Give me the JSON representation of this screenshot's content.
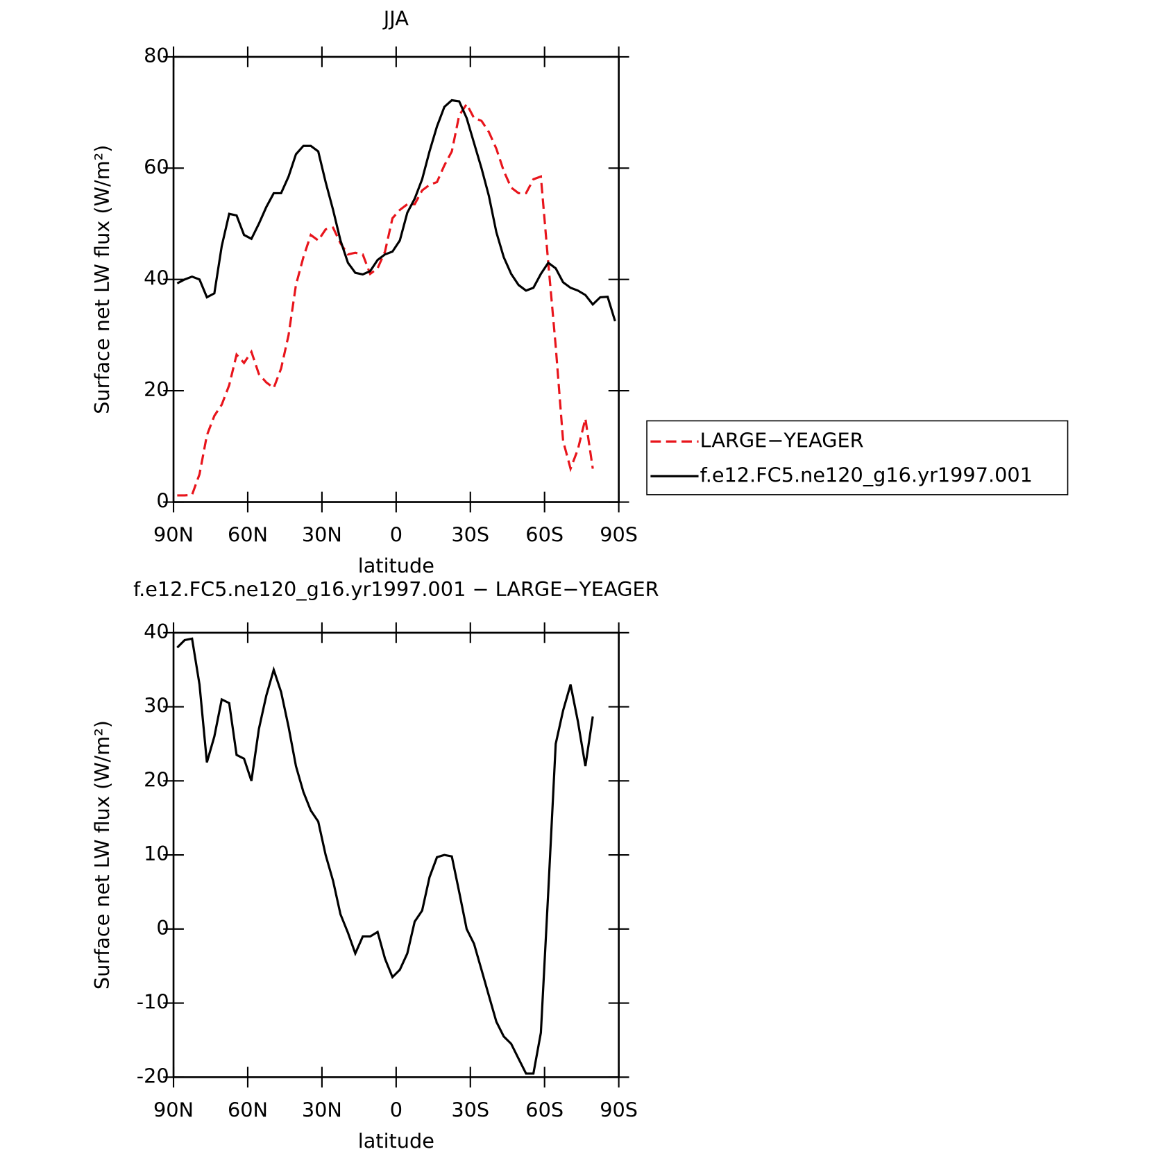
{
  "chart_data": [
    {
      "type": "line",
      "title": "JJA",
      "xlabel": "latitude",
      "ylabel": "Surface net LW flux (W/m²)",
      "x": [
        88.5,
        85.5,
        82.5,
        79.5,
        76.5,
        73.5,
        70.5,
        67.5,
        64.5,
        61.5,
        58.5,
        55.5,
        52.5,
        49.5,
        46.5,
        43.5,
        40.5,
        37.5,
        34.5,
        31.5,
        28.5,
        25.5,
        22.5,
        19.5,
        16.5,
        13.5,
        10.5,
        7.5,
        4.5,
        1.5,
        -1.5,
        -4.5,
        -7.5,
        -10.5,
        -13.5,
        -16.5,
        -19.5,
        -22.5,
        -25.5,
        -28.5,
        -31.5,
        -34.5,
        -37.5,
        -40.5,
        -43.5,
        -46.5,
        -49.5,
        -52.5,
        -55.5,
        -58.5,
        -61.5,
        -64.5,
        -67.5,
        -70.5,
        -73.5,
        -76.5,
        -79.5,
        -82.5,
        -85.5,
        -88.5
      ],
      "series": [
        {
          "name": "LARGE−YEAGER",
          "color": "#e8141b",
          "style": "dashed",
          "values": [
            1.2,
            1.2,
            1.3,
            5,
            12,
            15.5,
            17.5,
            21,
            26.5,
            25,
            27,
            23,
            21.5,
            20.5,
            24,
            30,
            39,
            44,
            48,
            47,
            49,
            49.3,
            46.5,
            44.5,
            44.8,
            44.5,
            41,
            42,
            45,
            51,
            52.5,
            53.5,
            53.5,
            56,
            57,
            57.5,
            60.5,
            63,
            69.5,
            71.5,
            69,
            68.5,
            66.5,
            63.5,
            59.5,
            56.5,
            55.5,
            55.5,
            58,
            58.5,
            43,
            28,
            11,
            6,
            9.5,
            15,
            6,
            null,
            null,
            null
          ]
        },
        {
          "name": "f.e12.FC5.ne120_g16.yr1997.001",
          "color": "#000000",
          "style": "solid",
          "values": [
            39.3,
            40,
            40.5,
            40,
            36.8,
            37.5,
            46,
            51.8,
            51.5,
            48,
            47.3,
            50,
            53,
            55.5,
            55.5,
            58.5,
            62.5,
            64,
            64,
            63,
            57.5,
            52.5,
            47,
            43,
            41.2,
            40.9,
            41.5,
            43.5,
            44.5,
            45,
            47,
            52,
            54.5,
            58,
            63,
            67.5,
            71,
            72.2,
            72,
            69,
            64.5,
            60,
            55,
            48.5,
            44,
            41,
            39,
            38,
            38.5,
            41,
            43,
            42,
            39.5,
            38.5,
            38,
            37.2,
            35.5,
            36.8,
            36.9,
            32.5
          ]
        }
      ],
      "legend": "right",
      "xlim": [
        90,
        -90
      ],
      "xticks": [
        {
          "value": 90,
          "label": "90N"
        },
        {
          "value": 60,
          "label": "60N"
        },
        {
          "value": 30,
          "label": "30N"
        },
        0,
        {
          "value": -30,
          "label": "30S"
        },
        {
          "value": -60,
          "label": "60S"
        },
        {
          "value": -90,
          "label": "90S"
        }
      ],
      "ylim": [
        0,
        80
      ],
      "yticks": [
        0,
        20,
        40,
        60,
        80
      ]
    },
    {
      "type": "line",
      "title": "f.e12.FC5.ne120_g16.yr1997.001 − LARGE−YEAGER",
      "xlabel": "latitude",
      "ylabel": "Surface net LW flux (W/m²)",
      "x": [
        88.5,
        85.5,
        82.5,
        79.5,
        76.5,
        73.5,
        70.5,
        67.5,
        64.5,
        61.5,
        58.5,
        55.5,
        52.5,
        49.5,
        46.5,
        43.5,
        40.5,
        37.5,
        34.5,
        31.5,
        28.5,
        25.5,
        22.5,
        19.5,
        16.5,
        13.5,
        10.5,
        7.5,
        4.5,
        1.5,
        -1.5,
        -4.5,
        -7.5,
        -10.5,
        -13.5,
        -16.5,
        -19.5,
        -22.5,
        -25.5,
        -28.5,
        -31.5,
        -34.5,
        -37.5,
        -40.5,
        -43.5,
        -46.5,
        -49.5,
        -52.5,
        -55.5,
        -58.5,
        -61.5,
        -64.5,
        -67.5,
        -70.5,
        -73.5,
        -76.5,
        -79.5,
        -82.5,
        -85.5,
        -88.5
      ],
      "series": [
        {
          "color": "#000000",
          "style": "solid",
          "values": [
            38,
            39,
            39.2,
            33,
            22.5,
            26,
            31,
            30.5,
            23.5,
            23,
            20,
            27,
            31.5,
            35,
            32,
            27.3,
            22,
            18.5,
            16,
            14.5,
            10,
            6.5,
            2,
            -0.5,
            -3.3,
            -1,
            -1,
            -0.4,
            -4,
            -6.5,
            -5.5,
            -3.3,
            1,
            2.5,
            7,
            9.7,
            10,
            9.8,
            5,
            0,
            -2,
            -5.5,
            -9,
            -12.5,
            -14.5,
            -15.5,
            -17.5,
            -19.5,
            -19.5,
            -14,
            5,
            25,
            29.5,
            33,
            28,
            22,
            28.7,
            null,
            null,
            null
          ]
        }
      ],
      "xlim": [
        90,
        -90
      ],
      "xticks": [
        {
          "value": 90,
          "label": "90N"
        },
        {
          "value": 60,
          "label": "60N"
        },
        {
          "value": 30,
          "label": "30N"
        },
        0,
        {
          "value": -30,
          "label": "30S"
        },
        {
          "value": -60,
          "label": "60S"
        },
        {
          "value": -90,
          "label": "90S"
        }
      ],
      "ylim": [
        -20,
        40
      ],
      "yticks": [
        -20,
        -10,
        0,
        10,
        20,
        30,
        40
      ]
    }
  ]
}
